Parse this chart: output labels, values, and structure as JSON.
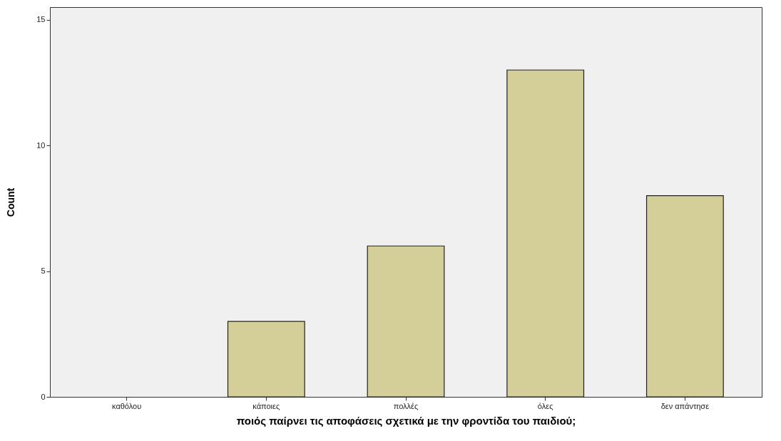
{
  "chart_data": {
    "type": "bar",
    "xlabel": "ποιός παίρνει τις αποφάσεις σχετικά με την φροντίδα του παιδιού;",
    "ylabel": "Count",
    "categories": [
      "καθόλου",
      "κάποιες",
      "πολλές",
      "όλες",
      "δεν απάντησε"
    ],
    "values": [
      0,
      3,
      6,
      13,
      8
    ],
    "color": "#d4cf98",
    "ylim": [
      0,
      15.5
    ],
    "yticks": [
      0,
      5,
      10,
      15
    ],
    "grid": false
  }
}
